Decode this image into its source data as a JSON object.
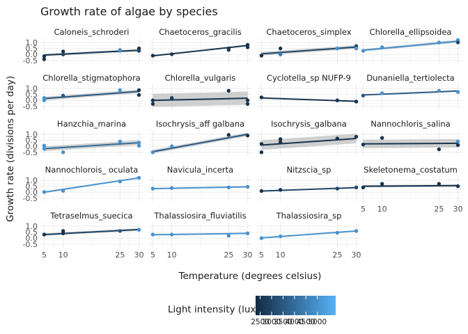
{
  "chart_data": {
    "type": "scatter",
    "title": "Growth rate of algae by species",
    "xlabel": "Temperature (degrees celsius)",
    "ylabel": "Growth rate (divisions per day)",
    "x_ticks": [
      "5",
      "10",
      "25",
      "30"
    ],
    "y_ticks": [
      "1.0",
      "0.5",
      "0.0",
      "-0.5"
    ],
    "xlim": [
      4,
      31
    ],
    "ylim": [
      -0.8,
      1.35
    ],
    "grid": true,
    "legend": {
      "title": "Light intensity (lux)",
      "placement": "bottom",
      "ticks": [
        "2500",
        "3000",
        "3500",
        "4000",
        "4500",
        "5000"
      ],
      "range": [
        2300,
        5800
      ],
      "low_color": "#132B43",
      "high_color": "#56B1F7"
    },
    "band_color": "#999999",
    "species": [
      {
        "name": "Caloneis_schroderi",
        "light": 2600,
        "points": [
          [
            5,
            -0.4,
            2500
          ],
          [
            5,
            -0.15,
            2500
          ],
          [
            10,
            0.25,
            2600
          ],
          [
            10,
            0.0,
            3000
          ],
          [
            25,
            0.35,
            3500
          ],
          [
            25,
            0.3,
            5000
          ],
          [
            30,
            0.5,
            2500
          ],
          [
            30,
            0.3,
            3000
          ]
        ],
        "fit": [
          -0.05,
          0.35
        ],
        "ci": [
          0.1,
          0.1
        ]
      },
      {
        "name": "Chaetoceros_gracilis",
        "light": 2500,
        "points": [
          [
            5,
            -0.1,
            2500
          ],
          [
            10,
            0.02,
            2500
          ],
          [
            25,
            0.5,
            2500
          ],
          [
            25,
            0.38,
            2700
          ],
          [
            30,
            0.8,
            2500
          ],
          [
            30,
            0.6,
            2600
          ]
        ],
        "fit": [
          -0.12,
          0.75
        ],
        "ci": [
          0.05,
          0.05
        ]
      },
      {
        "name": "Chaetoceros_simplex",
        "light": 3000,
        "points": [
          [
            5,
            -0.1,
            2500
          ],
          [
            10,
            0.5,
            2500
          ],
          [
            10,
            0.0,
            4500
          ],
          [
            25,
            0.5,
            5000
          ],
          [
            30,
            0.7,
            3000
          ],
          [
            30,
            0.5,
            5000
          ]
        ],
        "fit": [
          0.05,
          0.62
        ],
        "ci": [
          0.15,
          0.15
        ]
      },
      {
        "name": "Chlorella_ellipsoidea",
        "light": 5000,
        "points": [
          [
            5,
            0.3,
            5000
          ],
          [
            10,
            0.6,
            5000
          ],
          [
            25,
            1.0,
            5000
          ],
          [
            30,
            1.2,
            5000
          ],
          [
            30,
            1.0,
            3000
          ]
        ],
        "fit": [
          0.35,
          1.1
        ],
        "ci": [
          0.1,
          0.12
        ]
      },
      {
        "name": "Chlorella_stigmatophora",
        "light": 3500,
        "points": [
          [
            5,
            0.2,
            5000
          ],
          [
            5,
            0.0,
            5000
          ],
          [
            10,
            0.4,
            3500
          ],
          [
            25,
            0.85,
            5000
          ],
          [
            30,
            0.85,
            2500
          ],
          [
            30,
            0.45,
            2500
          ]
        ],
        "fit": [
          0.15,
          0.75
        ],
        "ci": [
          0.15,
          0.15
        ]
      },
      {
        "name": "Chlorella_vulgaris",
        "light": 2500,
        "points": [
          [
            5,
            0.0,
            2500
          ],
          [
            5,
            -0.3,
            2500
          ],
          [
            10,
            0.2,
            2700
          ],
          [
            25,
            0.8,
            2500
          ],
          [
            30,
            -0.3,
            2500
          ],
          [
            30,
            0.0,
            2600
          ]
        ],
        "fit": [
          0.0,
          0.18
        ],
        "ci": [
          0.55,
          0.55
        ]
      },
      {
        "name": "Cyclotella_sp NUFP-9",
        "light": 2500,
        "points": [
          [
            5,
            0.25,
            2500
          ],
          [
            25,
            0.0,
            2500
          ],
          [
            30,
            -0.1,
            2500
          ]
        ],
        "fit": [
          0.2,
          -0.08
        ],
        "ci": [
          0.04,
          0.04
        ]
      },
      {
        "name": "Dunaniella_tertiolecta",
        "light": 3500,
        "points": [
          [
            5,
            0.4,
            3500
          ],
          [
            10,
            0.6,
            5000
          ],
          [
            25,
            0.8,
            5000
          ],
          [
            30,
            0.7,
            5000
          ]
        ],
        "fit": [
          0.45,
          0.78
        ],
        "ci": [
          0.05,
          0.05
        ]
      },
      {
        "name": "Hanzchia_marina",
        "light": 4000,
        "points": [
          [
            5,
            -0.2,
            5000
          ],
          [
            5,
            0.05,
            5000
          ],
          [
            10,
            -0.5,
            5000
          ],
          [
            25,
            0.4,
            5000
          ],
          [
            30,
            0.3,
            5000
          ],
          [
            30,
            0.05,
            5000
          ]
        ],
        "fit": [
          -0.2,
          0.3
        ],
        "ci": [
          0.2,
          0.2
        ]
      },
      {
        "name": "Isochrysis_aff galbana",
        "light": 3500,
        "points": [
          [
            5,
            -0.5,
            5000
          ],
          [
            10,
            0.0,
            5000
          ],
          [
            25,
            0.95,
            2500
          ],
          [
            30,
            0.9,
            2500
          ]
        ],
        "fit": [
          -0.45,
          1.0
        ],
        "ci": [
          0.15,
          0.15
        ]
      },
      {
        "name": "Isochrysis_galbana",
        "light": 2500,
        "points": [
          [
            5,
            0.2,
            2500
          ],
          [
            5,
            -0.5,
            2500
          ],
          [
            10,
            0.6,
            2500
          ],
          [
            10,
            0.35,
            2500
          ],
          [
            25,
            0.65,
            2500
          ],
          [
            30,
            0.8,
            2600
          ]
        ],
        "fit": [
          0.1,
          0.65
        ],
        "ci": [
          0.4,
          0.4
        ]
      },
      {
        "name": "Nannochloris_salina",
        "light": 2500,
        "points": [
          [
            5,
            0.15,
            2500
          ],
          [
            10,
            0.7,
            2500
          ],
          [
            25,
            -0.25,
            2500
          ],
          [
            30,
            0.4,
            5000
          ],
          [
            30,
            0.1,
            2500
          ]
        ],
        "fit": [
          0.2,
          0.25
        ],
        "ci": [
          0.35,
          0.35
        ]
      },
      {
        "name": "Nannochlorois_ oculata",
        "light": 5000,
        "points": [
          [
            5,
            0.02,
            5000
          ],
          [
            10,
            0.12,
            5000
          ],
          [
            25,
            0.9,
            5000
          ],
          [
            30,
            1.2,
            5000
          ]
        ],
        "fit": [
          0.0,
          1.2
        ],
        "ci": [
          0.05,
          0.05
        ]
      },
      {
        "name": "Navicula_incerta",
        "light": 5000,
        "points": [
          [
            5,
            0.3,
            5000
          ],
          [
            10,
            0.35,
            5000
          ],
          [
            25,
            0.4,
            5000
          ],
          [
            30,
            0.45,
            5000
          ]
        ],
        "fit": [
          0.3,
          0.45
        ],
        "ci": [
          0.04,
          0.04
        ]
      },
      {
        "name": "Nitzscia_sp",
        "light": 3000,
        "points": [
          [
            5,
            0.1,
            2500
          ],
          [
            10,
            0.2,
            2500
          ],
          [
            25,
            0.3,
            3000
          ],
          [
            30,
            0.4,
            3000
          ]
        ],
        "fit": [
          0.1,
          0.38
        ],
        "ci": [
          0.05,
          0.05
        ]
      },
      {
        "name": "Skeletonema_costatum",
        "light": 2500,
        "points": [
          [
            5,
            0.4,
            2500
          ],
          [
            10,
            0.7,
            2500
          ],
          [
            25,
            0.7,
            2500
          ],
          [
            30,
            0.5,
            2500
          ]
        ],
        "fit": [
          0.5,
          0.55
        ],
        "ci": [
          0.1,
          0.1
        ]
      },
      {
        "name": "Tetraselmus_suecica",
        "light": 3000,
        "points": [
          [
            5,
            0.3,
            2500
          ],
          [
            10,
            0.4,
            2500
          ],
          [
            10,
            0.6,
            2500
          ],
          [
            25,
            0.6,
            3500
          ],
          [
            30,
            0.7,
            5000
          ]
        ],
        "fit": [
          0.3,
          0.72
        ],
        "ci": [
          0.1,
          0.1
        ]
      },
      {
        "name": "Thalassiosira_fluviatilis",
        "light": 5000,
        "points": [
          [
            5,
            0.3,
            5000
          ],
          [
            10,
            0.3,
            5000
          ],
          [
            25,
            0.2,
            5000
          ],
          [
            30,
            0.4,
            5000
          ]
        ],
        "fit": [
          0.28,
          0.4
        ],
        "ci": [
          0.05,
          0.05
        ]
      },
      {
        "name": "Thalassiosira_sp",
        "light": 5000,
        "points": [
          [
            5,
            0.0,
            5000
          ],
          [
            10,
            0.15,
            5000
          ],
          [
            25,
            0.45,
            5000
          ],
          [
            30,
            0.6,
            5000
          ]
        ],
        "fit": [
          0.02,
          0.6
        ],
        "ci": [
          0.05,
          0.05
        ]
      }
    ]
  }
}
